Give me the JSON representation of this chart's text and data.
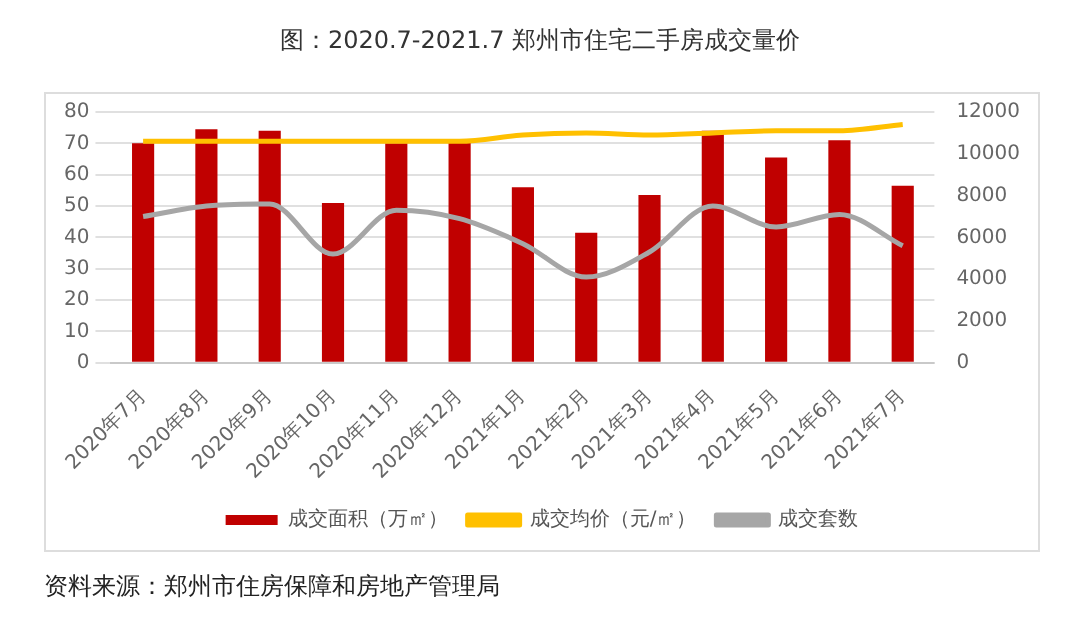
{
  "chart_data": {
    "type": "bar",
    "title": "图：2020.7-2021.7 郑州市住宅二手房成交量价",
    "categories": [
      "2020年7月",
      "2020年8月",
      "2020年9月",
      "2020年10月",
      "2020年11月",
      "2020年12月",
      "2021年1月",
      "2021年2月",
      "2021年3月",
      "2021年4月",
      "2021年5月",
      "2021年6月",
      "2021年7月"
    ],
    "series": [
      {
        "name": "成交面积（万㎡）",
        "color": "#c00000",
        "values": [
          70,
          74.5,
          74,
          51,
          70,
          70.5,
          56,
          41.5,
          53.5,
          74,
          65.5,
          71,
          56.5
        ]
      },
      {
        "name": "成交均价（元/㎡）",
        "type": "line",
        "axis": "y2",
        "color": "#ffc000",
        "values": [
          10600,
          10600,
          10600,
          10600,
          10600,
          10600,
          10900,
          11000,
          10900,
          11000,
          11100,
          11100,
          11400
        ]
      },
      {
        "name": "成交套数",
        "type": "line",
        "axis": "y2",
        "color": "#a6a6a6",
        "values": [
          7000,
          7500,
          7600,
          5200,
          7300,
          6900,
          5700,
          4100,
          5300,
          7500,
          6500,
          7100,
          5600
        ]
      }
    ],
    "ylim": [
      0,
      80
    ],
    "yticks": [
      0,
      10,
      20,
      30,
      40,
      50,
      60,
      70,
      80
    ],
    "y2lim": [
      0,
      12000
    ],
    "y2ticks": [
      0,
      2000,
      4000,
      6000,
      8000,
      10000,
      12000
    ],
    "grid": "y",
    "legend": "bottom",
    "marker": "none",
    "annotations": [
      "资料来源：郑州市住房保障和房地产管理局"
    ]
  }
}
